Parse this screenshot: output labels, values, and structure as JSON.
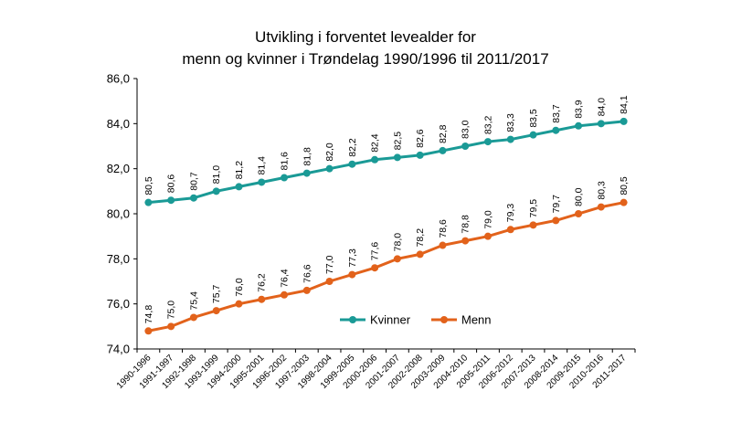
{
  "chart_data": {
    "type": "line",
    "title_lines": [
      "Utvikling i forventet levealder for",
      "menn og kvinner i Trøndelag 1990/1996 til 2011/2017"
    ],
    "xlabel": "",
    "ylabel": "",
    "ylim": [
      74,
      86
    ],
    "yticks": [
      "74,0",
      "76,0",
      "78,0",
      "80,0",
      "82,0",
      "84,0",
      "86,0"
    ],
    "grid": false,
    "legend_position": "center-right",
    "categories": [
      "1990-1996",
      "1991-1997",
      "1992-1998",
      "1993-1999",
      "1994-2000",
      "1995-2001",
      "1996-2002",
      "1997-2003",
      "1998-2004",
      "1999-2005",
      "2000-2006",
      "2001-2007",
      "2002-2008",
      "2003-2009",
      "2004-2010",
      "2005-2011",
      "2006-2012",
      "2007-2013",
      "2008-2014",
      "2009-2015",
      "2010-2016",
      "2011-2017"
    ],
    "series": [
      {
        "name": "Kvinner",
        "color": "#1a9a96",
        "values": [
          80.5,
          80.6,
          80.7,
          81.0,
          81.2,
          81.4,
          81.6,
          81.8,
          82.0,
          82.2,
          82.4,
          82.5,
          82.6,
          82.8,
          83.0,
          83.2,
          83.3,
          83.5,
          83.7,
          83.9,
          84.0,
          84.1
        ],
        "labels": [
          "80,5",
          "80,6",
          "80,7",
          "81,0",
          "81,2",
          "81,4",
          "81,6",
          "81,8",
          "82,0",
          "82,2",
          "82,4",
          "82,5",
          "82,6",
          "82,8",
          "83,0",
          "83,2",
          "83,3",
          "83,5",
          "83,7",
          "83,9",
          "84,0",
          "84,1"
        ]
      },
      {
        "name": "Menn",
        "color": "#e2621b",
        "values": [
          74.8,
          75.0,
          75.4,
          75.7,
          76.0,
          76.2,
          76.4,
          76.6,
          77.0,
          77.3,
          77.6,
          78.0,
          78.2,
          78.6,
          78.8,
          79.0,
          79.3,
          79.5,
          79.7,
          80.0,
          80.3,
          80.5
        ],
        "labels": [
          "74,8",
          "75,0",
          "75,4",
          "75,7",
          "76,0",
          "76,2",
          "76,4",
          "76,6",
          "77,0",
          "77,3",
          "77,6",
          "78,0",
          "78,2",
          "78,6",
          "78,8",
          "79,0",
          "79,3",
          "79,5",
          "79,7",
          "80,0",
          "80,3",
          "80,5"
        ]
      }
    ]
  }
}
